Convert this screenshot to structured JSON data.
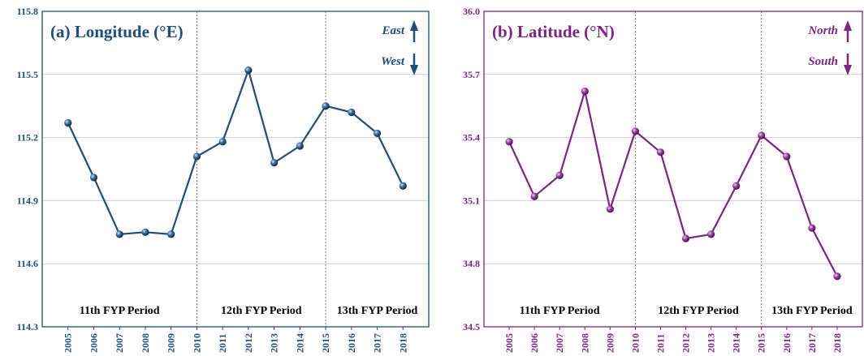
{
  "chart_data": [
    {
      "type": "line",
      "title": "(a) Longitude (°E)",
      "color": "#1f4e79",
      "ylim": [
        114.3,
        115.8
      ],
      "yticks": [
        "115.8",
        "115.5",
        "115.2",
        "114.9",
        "114.6",
        "114.3"
      ],
      "x": [
        "2005",
        "2006",
        "2007",
        "2008",
        "2009",
        "2010",
        "2011",
        "2012",
        "2013",
        "2014",
        "2015",
        "2016",
        "2017",
        "2018"
      ],
      "values": [
        115.27,
        115.01,
        114.74,
        114.75,
        114.74,
        115.11,
        115.18,
        115.52,
        115.08,
        115.16,
        115.35,
        115.32,
        115.22,
        114.97
      ],
      "direction_labels": {
        "up": "East",
        "down": "West"
      },
      "periods": [
        "11th FYP Period",
        "12th FYP Period",
        "13th FYP Period"
      ],
      "grid": true
    },
    {
      "type": "line",
      "title": "(b) Latitude (°N)",
      "color": "#7b2583",
      "ylim": [
        34.5,
        36.0
      ],
      "yticks": [
        "36.0",
        "35.7",
        "35.4",
        "35.1",
        "34.8",
        "34.5"
      ],
      "x": [
        "2005",
        "2006",
        "2007",
        "2008",
        "2009",
        "2010",
        "2011",
        "2012",
        "2013",
        "2014",
        "2015",
        "2016",
        "2017",
        "2018"
      ],
      "values": [
        35.38,
        35.12,
        35.22,
        35.62,
        35.06,
        35.43,
        35.33,
        34.92,
        34.94,
        35.17,
        35.41,
        35.31,
        34.97,
        34.74
      ],
      "direction_labels": {
        "up": "North",
        "down": "South"
      },
      "periods": [
        "11th FYP Period",
        "12th FYP Period",
        "13th FYP Period"
      ],
      "grid": true
    }
  ]
}
